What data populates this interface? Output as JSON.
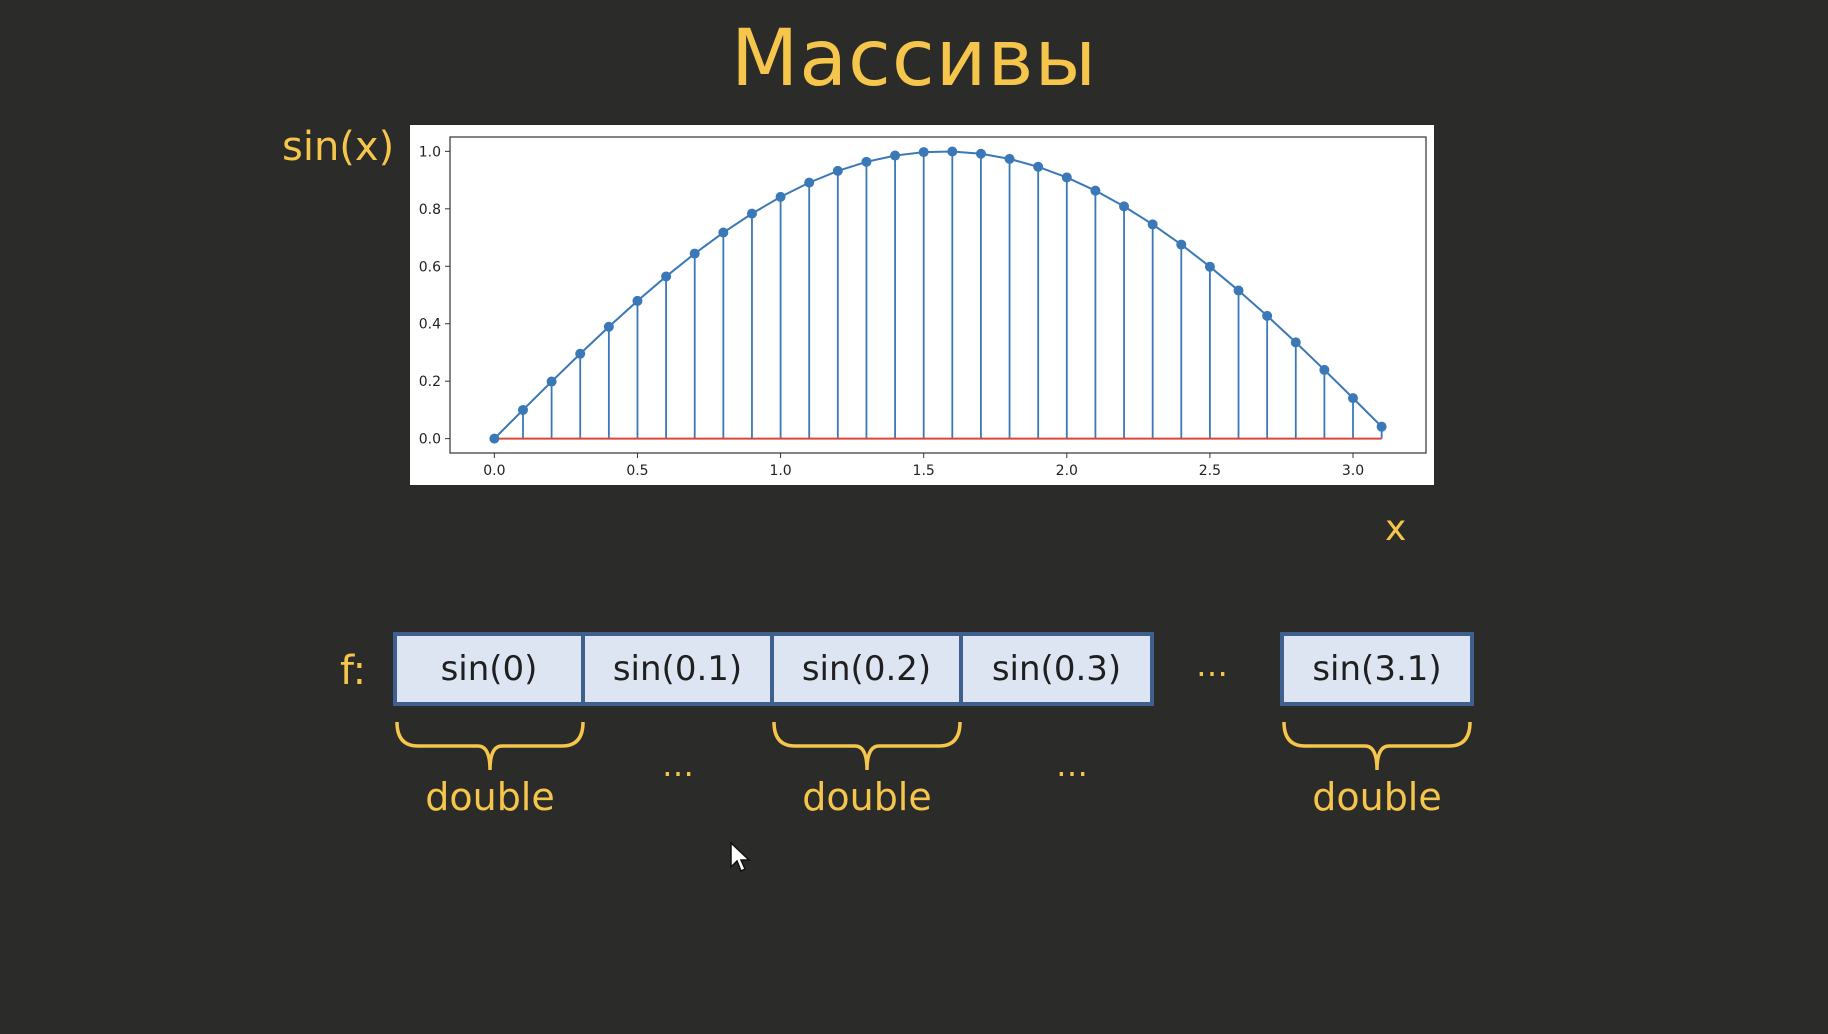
{
  "slide": {
    "title": "Массивы",
    "y_axis_label": "sin(x)",
    "x_axis_label": "x"
  },
  "chart_data": {
    "type": "stem",
    "title": "",
    "xlabel": "",
    "ylabel": "",
    "x": [
      0.0,
      0.1,
      0.2,
      0.3,
      0.4,
      0.5,
      0.6,
      0.7,
      0.8,
      0.9,
      1.0,
      1.1,
      1.2,
      1.3,
      1.4,
      1.5,
      1.6,
      1.7,
      1.8,
      1.9,
      2.0,
      2.1,
      2.2,
      2.3,
      2.4,
      2.5,
      2.6,
      2.7,
      2.8,
      2.9,
      3.0,
      3.1
    ],
    "y": [
      0.0,
      0.0998,
      0.1987,
      0.2955,
      0.3894,
      0.4794,
      0.5646,
      0.6442,
      0.7174,
      0.7833,
      0.8415,
      0.8912,
      0.932,
      0.9636,
      0.9854,
      0.9975,
      0.9996,
      0.9917,
      0.9738,
      0.9463,
      0.9093,
      0.8632,
      0.8085,
      0.7457,
      0.6755,
      0.5985,
      0.5155,
      0.4274,
      0.335,
      0.2392,
      0.1411,
      0.0416
    ],
    "xlim": [
      -0.155,
      3.255
    ],
    "ylim": [
      -0.05,
      1.05
    ],
    "xticks": [
      "0.0",
      "0.5",
      "1.0",
      "1.5",
      "2.0",
      "2.5",
      "3.0"
    ],
    "xtick_values": [
      0.0,
      0.5,
      1.0,
      1.5,
      2.0,
      2.5,
      3.0
    ],
    "yticks": [
      "0.0",
      "0.2",
      "0.4",
      "0.6",
      "0.8",
      "1.0"
    ],
    "ytick_values": [
      0.0,
      0.2,
      0.4,
      0.6,
      0.8,
      1.0
    ],
    "grid": false,
    "colors": {
      "stem": "#3a78b8",
      "baseline": "#d9473b",
      "axes": "#333333"
    }
  },
  "array": {
    "name": "f:",
    "cells": [
      "sin(0)",
      "sin(0.1)",
      "sin(0.2)",
      "sin(0.3)",
      "sin(3.1)"
    ],
    "ellipsis": "…",
    "brace_labels": [
      "double",
      "double",
      "double"
    ],
    "brace_gaps": [
      "…",
      "…"
    ],
    "colors": {
      "cell_bg": "#dde5f2",
      "cell_border": "#3f5f8f",
      "accent": "#f5c54c"
    }
  }
}
